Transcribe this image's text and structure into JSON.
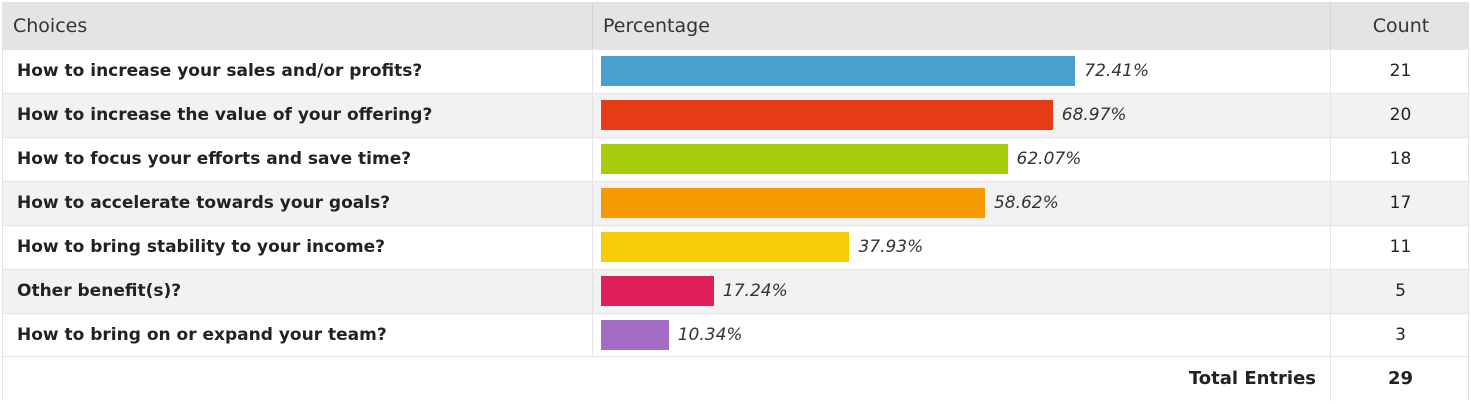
{
  "header": {
    "choices": "Choices",
    "percentage": "Percentage",
    "count": "Count"
  },
  "chart_data": {
    "type": "bar",
    "categories": [
      "How to increase your sales and/or profits?",
      "How to increase the value of your offering?",
      "How to focus your efforts and save time?",
      "How to accelerate towards your goals?",
      "How to bring stability to your income?",
      "Other benefit(s)?",
      "How to bring on or expand your team?"
    ],
    "values": [
      72.41,
      68.97,
      62.07,
      58.62,
      37.93,
      17.24,
      10.34
    ],
    "value_labels": [
      "72.41%",
      "68.97%",
      "62.07%",
      "58.62%",
      "37.93%",
      "17.24%",
      "10.34%"
    ],
    "counts": [
      "21",
      "20",
      "18",
      "17",
      "11",
      "5",
      "3"
    ],
    "colors": [
      "#4a9fcc",
      "#e63c16",
      "#a8cb0c",
      "#f79a00",
      "#f7cd0a",
      "#e01e5a",
      "#a46cc5"
    ],
    "xlim": [
      0,
      100
    ]
  },
  "footer": {
    "total_label": "Total Entries",
    "total_value": "29"
  }
}
